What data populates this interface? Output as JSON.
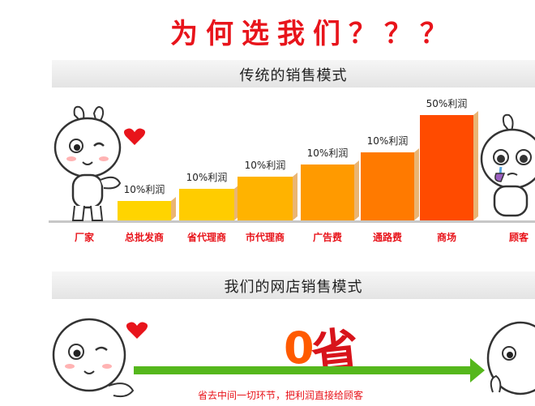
{
  "headline": "为何选我们？？？",
  "section1_title": "传统的销售模式",
  "section2_title": "我们的网店销售模式",
  "chart_data": {
    "type": "bar",
    "title": "传统的销售模式",
    "categories": [
      "总批发商",
      "省代理商",
      "市代理商",
      "广告费",
      "通路费",
      "商场"
    ],
    "values": [
      10,
      10,
      10,
      10,
      10,
      50
    ],
    "value_labels": [
      "10%利润",
      "10%利润",
      "10%利润",
      "10%利润",
      "10%利润",
      "50%利润"
    ],
    "endpoints": {
      "start": "厂家",
      "end": "顾客"
    }
  },
  "colors": {
    "headline": "#e8141b",
    "labels": "#e8141b",
    "arrow": "#55b71c",
    "bars": [
      "#ffd400",
      "#ffcc00",
      "#ffb300",
      "#ff9a00",
      "#ff7a00",
      "#ff4b00"
    ]
  },
  "savings": {
    "big_zero": "0",
    "big_word": "省",
    "caption": "省去中间一切环节，把利润直接给顾客"
  },
  "icons": [
    "bunny-character-left",
    "crying-bunny-character-right",
    "heart-icon",
    "arrow-right-icon"
  ]
}
